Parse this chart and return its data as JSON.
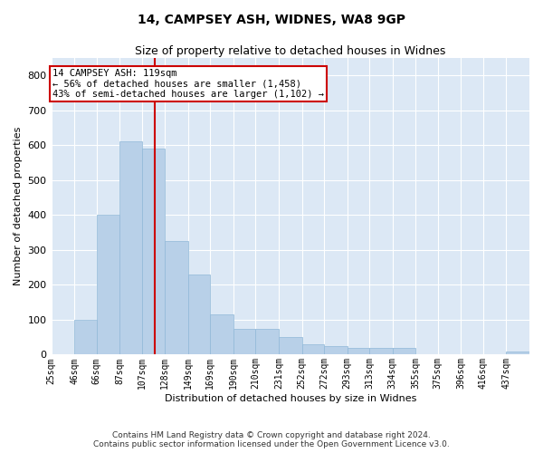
{
  "title": "14, CAMPSEY ASH, WIDNES, WA8 9GP",
  "subtitle": "Size of property relative to detached houses in Widnes",
  "xlabel": "Distribution of detached houses by size in Widnes",
  "ylabel": "Number of detached properties",
  "footer": "Contains HM Land Registry data © Crown copyright and database right 2024.\nContains public sector information licensed under the Open Government Licence v3.0.",
  "annotation_line1": "14 CAMPSEY ASH: 119sqm",
  "annotation_line2": "← 56% of detached houses are smaller (1,458)",
  "annotation_line3": "43% of semi-detached houses are larger (1,102) →",
  "property_size": 119,
  "bar_color": "#b8d0e8",
  "bar_edge_color": "#90b8d8",
  "line_color": "#cc0000",
  "bg_color": "#dce8f5",
  "annotation_box_color": "#ffffff",
  "annotation_box_edge": "#cc0000",
  "bins": [
    25,
    46,
    66,
    87,
    107,
    128,
    149,
    169,
    190,
    210,
    231,
    252,
    272,
    293,
    313,
    334,
    355,
    375,
    396,
    416,
    437,
    458
  ],
  "bin_labels": [
    "25sqm",
    "46sqm",
    "66sqm",
    "87sqm",
    "107sqm",
    "128sqm",
    "149sqm",
    "169sqm",
    "190sqm",
    "210sqm",
    "231sqm",
    "252sqm",
    "272sqm",
    "293sqm",
    "313sqm",
    "334sqm",
    "355sqm",
    "375sqm",
    "396sqm",
    "416sqm",
    "437sqm"
  ],
  "values": [
    2,
    100,
    400,
    612,
    590,
    325,
    230,
    115,
    75,
    75,
    50,
    30,
    25,
    20,
    20,
    20,
    0,
    0,
    0,
    0,
    8
  ],
  "ylim": [
    0,
    850
  ],
  "yticks": [
    0,
    100,
    200,
    300,
    400,
    500,
    600,
    700,
    800
  ]
}
